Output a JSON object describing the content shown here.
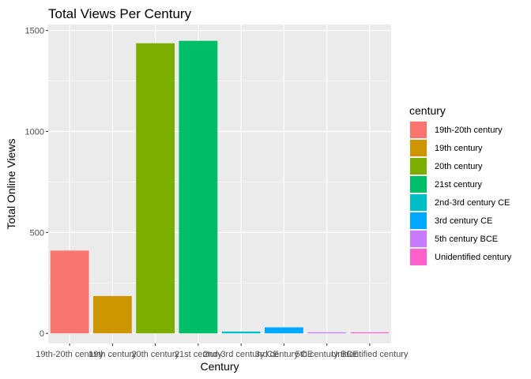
{
  "chart_data": {
    "type": "bar",
    "title": "Total Views Per Century",
    "xlabel": "Century",
    "ylabel": "Total Online Views",
    "categories": [
      "19th-20th century",
      "19th century",
      "20th century",
      "21st century",
      "2nd-3rd century CE",
      "3rd century CE",
      "5th century BCE",
      "Unidentified century"
    ],
    "values": [
      410,
      185,
      1437,
      1449,
      9,
      30,
      5,
      5
    ],
    "colors": [
      "#F8766D",
      "#CD9600",
      "#7CAE00",
      "#00BE67",
      "#00BFC4",
      "#00A9FF",
      "#C77CFF",
      "#FF61CC"
    ],
    "yticks": [
      0,
      500,
      1000,
      1500
    ],
    "ylim": [
      -50,
      1530
    ],
    "grid": true,
    "legend": {
      "title": "century",
      "position": "right"
    }
  }
}
